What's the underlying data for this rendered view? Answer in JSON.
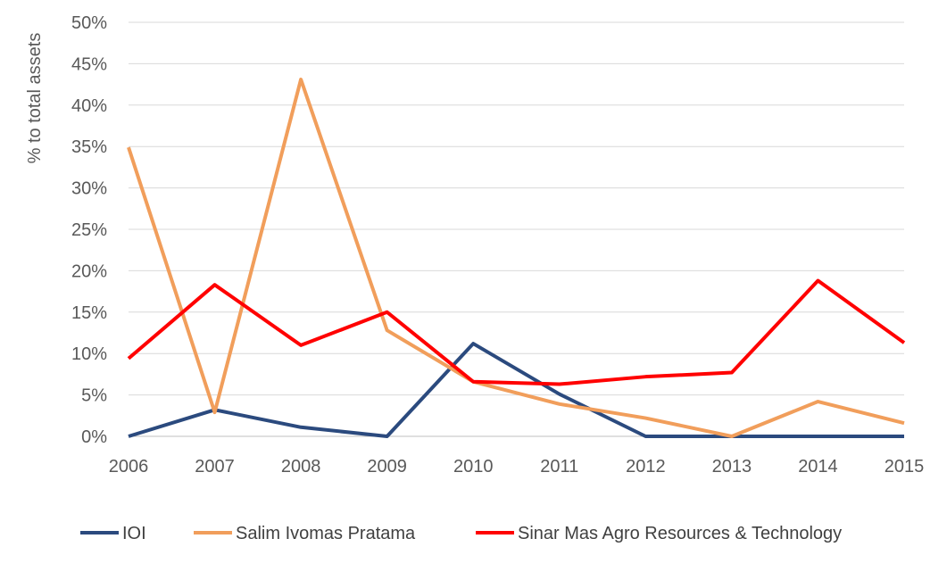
{
  "chart_data": {
    "type": "line",
    "title": "",
    "xlabel": "",
    "ylabel": "% to total assets",
    "ylim": [
      0,
      50
    ],
    "yticks": [
      "0%",
      "5%",
      "10%",
      "15%",
      "20%",
      "25%",
      "30%",
      "35%",
      "40%",
      "45%",
      "50%"
    ],
    "categories": [
      "2006",
      "2007",
      "2008",
      "2009",
      "2010",
      "2011",
      "2012",
      "2013",
      "2014",
      "2015"
    ],
    "grid": true,
    "legend": "bottom",
    "series": [
      {
        "name": "IOI",
        "color": "#2b4a7e",
        "values": [
          0,
          3.2,
          1.1,
          0,
          11.2,
          5.1,
          0,
          0,
          0,
          0
        ]
      },
      {
        "name": "Salim Ivomas Pratama",
        "color": "#f19e5b",
        "values": [
          34.9,
          2.9,
          43.1,
          12.8,
          6.6,
          3.9,
          2.2,
          0,
          4.2,
          1.6
        ]
      },
      {
        "name": "Sinar Mas Agro Resources & Technology",
        "color": "#ff0000",
        "values": [
          9.4,
          18.3,
          11.0,
          15.0,
          6.6,
          6.3,
          7.2,
          7.7,
          18.8,
          11.3
        ]
      }
    ]
  }
}
